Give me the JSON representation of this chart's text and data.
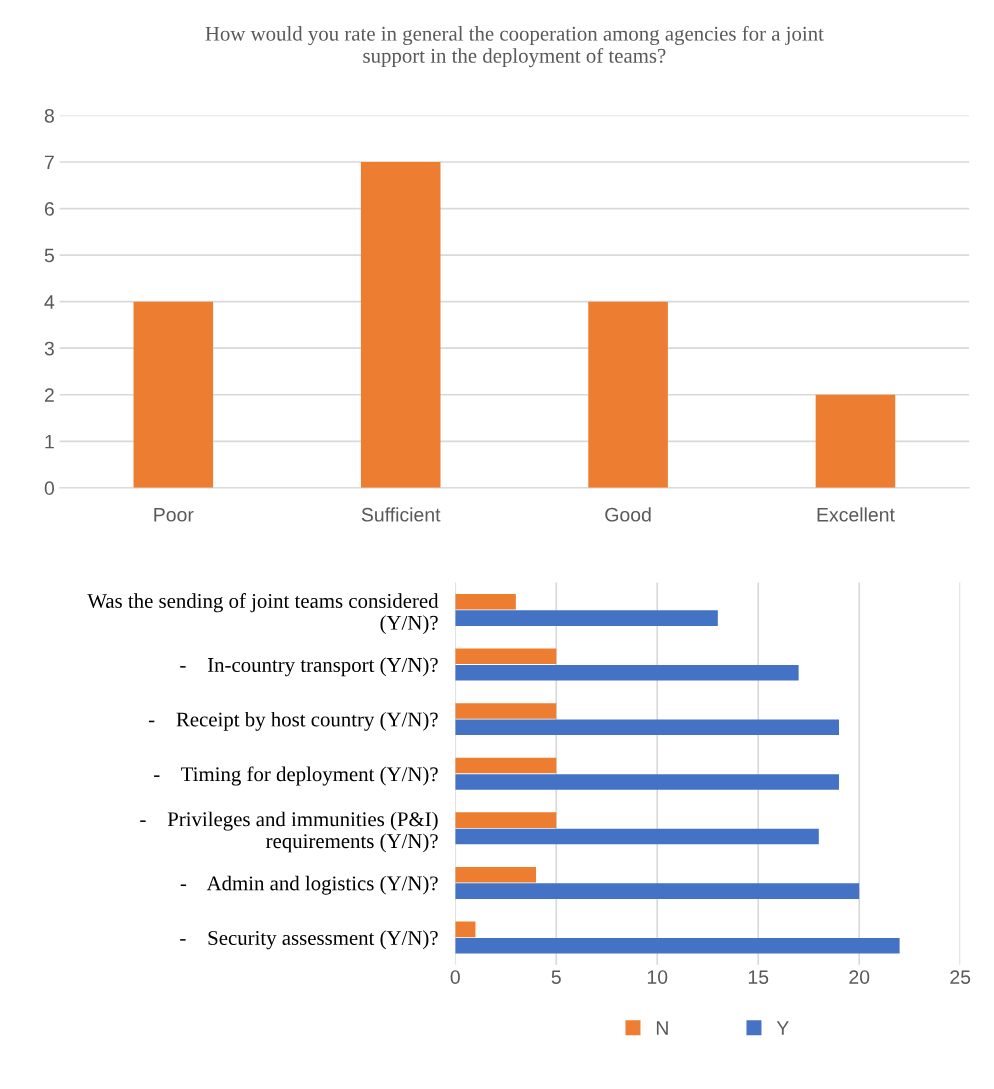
{
  "chart_data": [
    {
      "type": "bar",
      "title": "How would you rate in general the cooperation among agencies for a joint\nsupport in the deployment of teams?",
      "categories": [
        "Poor",
        "Sufficient",
        "Good",
        "Excellent"
      ],
      "values": [
        4,
        7,
        4,
        2
      ],
      "color": "#ed7d31",
      "ylim": [
        0,
        8
      ],
      "yticks": [
        0,
        1,
        2,
        3,
        4,
        5,
        6,
        7,
        8
      ],
      "grid": "y",
      "legend": false
    },
    {
      "type": "bar",
      "orientation": "horizontal",
      "categories": [
        "Was the sending of joint teams considered\n(Y/N)?",
        "-    In-country transport (Y/N)?",
        "-    Receipt by host country (Y/N)?",
        "-    Timing for deployment (Y/N)?",
        "-    Privileges and immunities (P&I)\nrequirements (Y/N)?",
        "-    Admin and logistics (Y/N)?",
        "-    Security assessment (Y/N)?"
      ],
      "series": [
        {
          "name": "N",
          "color": "#ed7d31",
          "values": [
            3,
            5,
            5,
            5,
            5,
            4,
            1
          ]
        },
        {
          "name": "Y",
          "color": "#4472c4",
          "values": [
            13,
            17,
            19,
            19,
            18,
            20,
            22
          ]
        }
      ],
      "xlim": [
        0,
        25
      ],
      "xticks": [
        0,
        5,
        10,
        15,
        20,
        25
      ],
      "grid": "x",
      "legend": "bottom"
    }
  ]
}
